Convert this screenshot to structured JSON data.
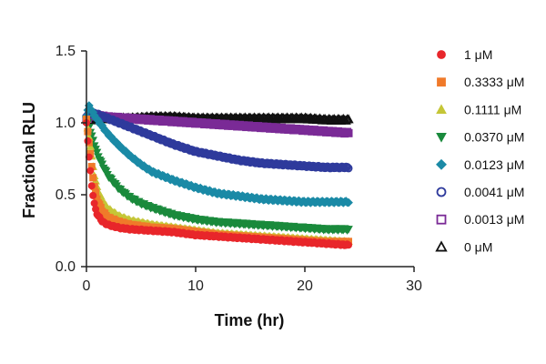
{
  "chart_data": {
    "type": "scatter",
    "title": "",
    "xlabel": "Time (hr)",
    "ylabel": "Fractional RLU",
    "xlim": [
      0,
      30
    ],
    "ylim": [
      0,
      1.5
    ],
    "xticks": [
      0,
      10,
      20,
      30
    ],
    "yticks": [
      0.0,
      0.5,
      1.0,
      1.5
    ],
    "ytick_labels": [
      "0.0",
      "0.5",
      "1.0",
      "1.5"
    ],
    "grid": false,
    "legend_position": "right",
    "series": [
      {
        "name": "1 μM",
        "marker": "circle",
        "filled": true,
        "color": "#e8262b",
        "x": [
          0,
          0.25,
          0.5,
          0.75,
          1,
          1.5,
          2,
          3,
          4,
          6,
          8,
          10,
          12,
          14,
          16,
          18,
          20,
          22,
          24
        ],
        "y": [
          1.0,
          0.75,
          0.55,
          0.42,
          0.36,
          0.31,
          0.29,
          0.27,
          0.26,
          0.25,
          0.24,
          0.22,
          0.21,
          0.2,
          0.19,
          0.18,
          0.17,
          0.16,
          0.15
        ]
      },
      {
        "name": "0.3333 μM",
        "marker": "square",
        "filled": true,
        "color": "#f07a2a",
        "x": [
          0,
          0.25,
          0.5,
          0.75,
          1,
          1.5,
          2,
          3,
          4,
          6,
          8,
          10,
          12,
          14,
          16,
          18,
          20,
          22,
          24
        ],
        "y": [
          1.02,
          0.86,
          0.68,
          0.54,
          0.46,
          0.38,
          0.34,
          0.31,
          0.29,
          0.27,
          0.26,
          0.24,
          0.22,
          0.21,
          0.2,
          0.19,
          0.18,
          0.17,
          0.17
        ]
      },
      {
        "name": "0.1111 μM",
        "marker": "triangle-up",
        "filled": true,
        "color": "#c5c637",
        "x": [
          0,
          0.25,
          0.5,
          0.75,
          1,
          1.5,
          2,
          3,
          4,
          6,
          8,
          10,
          12,
          14,
          16,
          18,
          20,
          22,
          24
        ],
        "y": [
          1.02,
          0.9,
          0.75,
          0.62,
          0.54,
          0.45,
          0.4,
          0.35,
          0.32,
          0.29,
          0.27,
          0.25,
          0.23,
          0.22,
          0.21,
          0.2,
          0.19,
          0.18,
          0.17
        ]
      },
      {
        "name": "0.0370 μM",
        "marker": "triangle-down",
        "filled": true,
        "color": "#1a8a3c",
        "x": [
          0,
          0.25,
          0.5,
          1,
          1.5,
          2,
          3,
          4,
          5,
          6,
          8,
          10,
          12,
          14,
          16,
          18,
          20,
          22,
          24
        ],
        "y": [
          1.02,
          0.97,
          0.9,
          0.78,
          0.7,
          0.63,
          0.54,
          0.48,
          0.44,
          0.41,
          0.36,
          0.33,
          0.31,
          0.3,
          0.29,
          0.28,
          0.27,
          0.26,
          0.26
        ]
      },
      {
        "name": "0.0123 μM",
        "marker": "diamond",
        "filled": true,
        "color": "#1b8aa6",
        "x": [
          0,
          0.25,
          0.5,
          1,
          2,
          3,
          4,
          5,
          6,
          8,
          10,
          12,
          14,
          16,
          18,
          20,
          22,
          24
        ],
        "y": [
          1.05,
          1.12,
          1.08,
          1.02,
          0.92,
          0.84,
          0.77,
          0.71,
          0.66,
          0.6,
          0.55,
          0.51,
          0.49,
          0.47,
          0.46,
          0.45,
          0.45,
          0.45
        ]
      },
      {
        "name": "0.0041 μM",
        "marker": "circle",
        "filled": false,
        "color": "#2e3a9c",
        "x": [
          0,
          0.5,
          1,
          2,
          3,
          4,
          6,
          8,
          10,
          12,
          14,
          16,
          18,
          20,
          22,
          24
        ],
        "y": [
          1.05,
          1.07,
          1.06,
          1.03,
          1.0,
          0.97,
          0.91,
          0.85,
          0.8,
          0.77,
          0.74,
          0.72,
          0.71,
          0.7,
          0.69,
          0.69
        ]
      },
      {
        "name": "0.0013 μM",
        "marker": "square",
        "filled": false,
        "color": "#7a2a96",
        "x": [
          0,
          0.5,
          1,
          2,
          4,
          6,
          8,
          10,
          12,
          14,
          16,
          18,
          20,
          22,
          24
        ],
        "y": [
          1.03,
          1.05,
          1.05,
          1.04,
          1.03,
          1.02,
          1.01,
          1.0,
          0.99,
          0.98,
          0.97,
          0.96,
          0.95,
          0.94,
          0.93
        ]
      },
      {
        "name": "0 μM",
        "marker": "triangle-up",
        "filled": false,
        "color": "#111111",
        "x": [
          0,
          0.5,
          1,
          2,
          4,
          6,
          8,
          10,
          12,
          14,
          16,
          18,
          20,
          22,
          24
        ],
        "y": [
          1.02,
          1.02,
          1.03,
          1.03,
          1.03,
          1.04,
          1.04,
          1.03,
          1.03,
          1.03,
          1.03,
          1.03,
          1.03,
          1.02,
          1.02
        ]
      }
    ]
  }
}
